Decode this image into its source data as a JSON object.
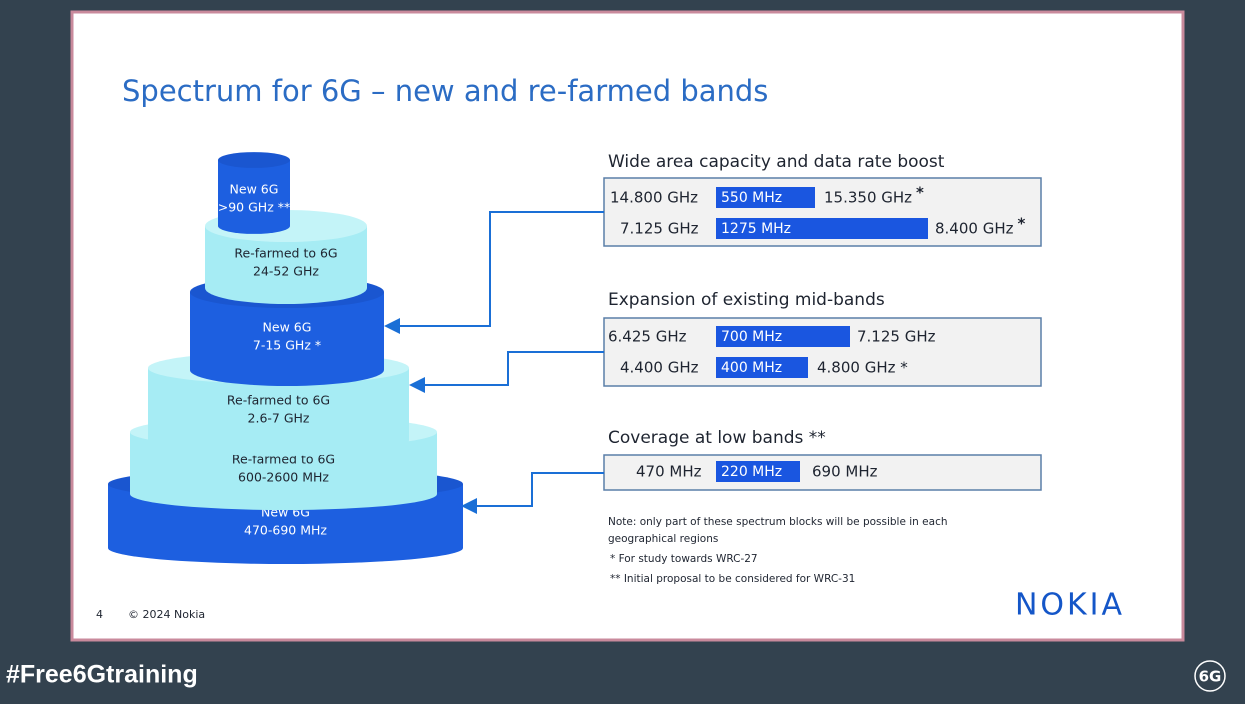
{
  "title": "Spectrum for 6G – new and re-farmed bands",
  "tiers": [
    {
      "line1": "New 6G",
      "line2": ">90 GHz **"
    },
    {
      "line1": "Re-farmed to 6G",
      "line2": "24-52 GHz"
    },
    {
      "line1": "New 6G",
      "line2": "7-15 GHz *"
    },
    {
      "line1": "Re-farmed to 6G",
      "line2": "2.6-7 GHz"
    },
    {
      "line1": "Re-farmed to 6G",
      "line2": "600-2600 MHz"
    },
    {
      "line1": "New 6G",
      "line2": "470-690 MHz"
    }
  ],
  "groups": [
    {
      "heading": "Wide area capacity and data rate boost",
      "rows": [
        {
          "start": "14.800 GHz",
          "width": "550 MHz",
          "end": "15.350 GHz",
          "mark": "*"
        },
        {
          "start": "7.125 GHz",
          "width": "1275 MHz",
          "end": "8.400 GHz",
          "mark": "*"
        }
      ]
    },
    {
      "heading": "Expansion of existing mid-bands",
      "rows": [
        {
          "start": "6.425 GHz",
          "width": "700 MHz",
          "end": "7.125 GHz"
        },
        {
          "start": "4.400 GHz",
          "width": "400 MHz",
          "end": "4.800 GHz *"
        }
      ]
    },
    {
      "heading": "Coverage at low bands **",
      "rows": [
        {
          "start": "470 MHz",
          "width": "220 MHz",
          "end": "690 MHz"
        }
      ]
    }
  ],
  "notes": [
    "Note: only part of these spectrum blocks will be possible in each",
    "geographical regions",
    "* For study towards WRC-27",
    "** Initial proposal to be considered for WRC-31"
  ],
  "page_number": "4",
  "copyright": "© 2024 Nokia",
  "logo": "NOKIA",
  "hashtag": "#Free6Gtraining",
  "badge": "6G"
}
